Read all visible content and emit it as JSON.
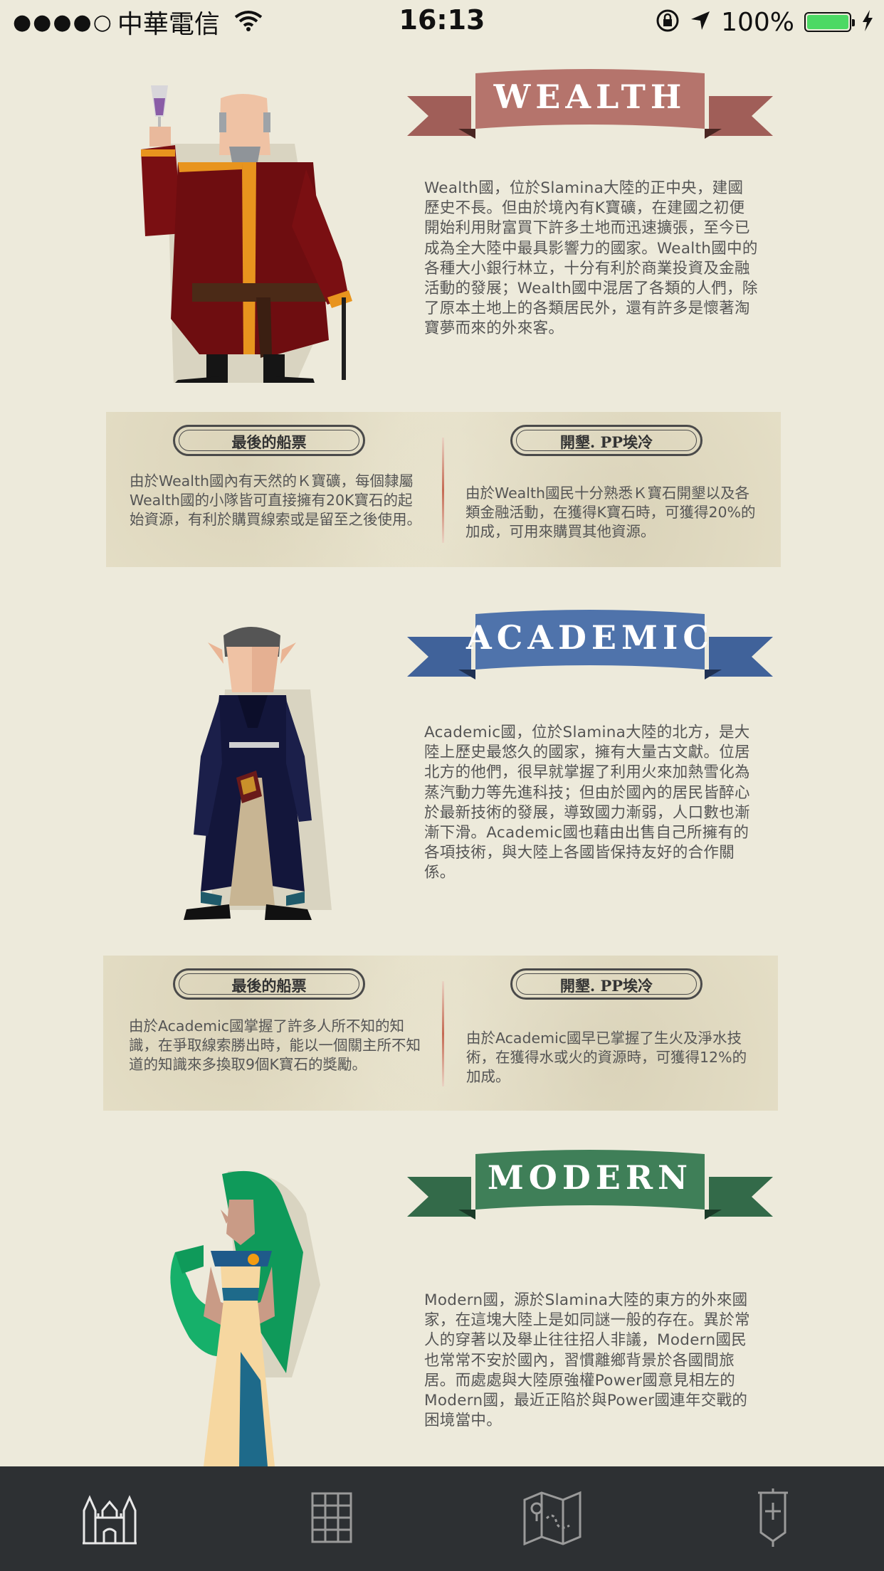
{
  "status_bar": {
    "signal": "●●●●○",
    "carrier": "中華電信",
    "time": "16:13",
    "battery_percent": "100%",
    "battery_level": 1.0,
    "icons": [
      "wifi-icon",
      "rotation-lock-icon",
      "location-arrow-icon",
      "charging-bolt-icon"
    ]
  },
  "colors": {
    "background": "#edeadb",
    "wealth": "#b5746c",
    "academic": "#4f73ab",
    "modern": "#3f7f58",
    "tabbar": "#2d3033"
  },
  "nations": [
    {
      "banner": "WEALTH",
      "description": "Wealth國，位於Slamina大陸的正中央，建國歷史不長。但由於境內有K寶礦，在建國之初便開始利用財富買下許多土地而迅速擴張，至今已成為全大陸中最具影響力的國家。Wealth國中的各種大小銀行林立，十分有利於商業投資及金融活動的發展；Wealth國中混居了各類的人們，除了原本土地上的各類居民外，還有許多是懷著淘寶夢而來的外來客。",
      "abilities": [
        {
          "title": "最後的船票",
          "text": "由於Wealth國內有天然的Ｋ寶礦，每個隸屬Wealth國的小隊皆可直接擁有20K寶石的起始資源，有利於購買線索或是留至之後使用。"
        },
        {
          "title": "開墾. PP埃冷",
          "text": "由於Wealth國民十分熟悉Ｋ寶石開墾以及各類金融活動，在獲得K寶石時，可獲得20%的加成，可用來購買其他資源。"
        }
      ]
    },
    {
      "banner": "ACADEMIC",
      "description": "Academic國，位於Slamina大陸的北方，是大陸上歷史最悠久的國家，擁有大量古文獻。位居北方的他們，很早就掌握了利用火來加熱雪化為蒸汽動力等先進科技；但由於國內的居民皆醉心於最新技術的發展，導致國力漸弱，人口數也漸漸下滑。Academic國也藉由出售自己所擁有的各項技術，與大陸上各國皆保持友好的合作關係。",
      "abilities": [
        {
          "title": "最後的船票",
          "text": "由於Academic國掌握了許多人所不知的知識，在爭取線索勝出時，能以一個關主所不知道的知識來多換取9個K寶石的獎勵。"
        },
        {
          "title": "開墾. PP埃冷",
          "text": "由於Academic國早已掌握了生火及淨水技術，在獲得水或火的資源時，可獲得12%的加成。"
        }
      ]
    },
    {
      "banner": "MODERN",
      "description": "Modern國，源於Slamina大陸的東方的外來國家，在這塊大陸上是如同謎一般的存在。異於常人的穿著以及舉止往往招人非議，Modern國民也常常不安於國內，習慣離鄉背景於各國間旅居。而處處與大陸原強權Power國意見相左的Modern國，最近正陷於與Power國連年交戰的困境當中。"
    }
  ],
  "tabbar": {
    "tabs": [
      {
        "icon": "castle-icon",
        "active": true
      },
      {
        "icon": "grid-icon",
        "active": false
      },
      {
        "icon": "map-icon",
        "active": false
      },
      {
        "icon": "banner-flag-icon",
        "active": false
      }
    ]
  }
}
